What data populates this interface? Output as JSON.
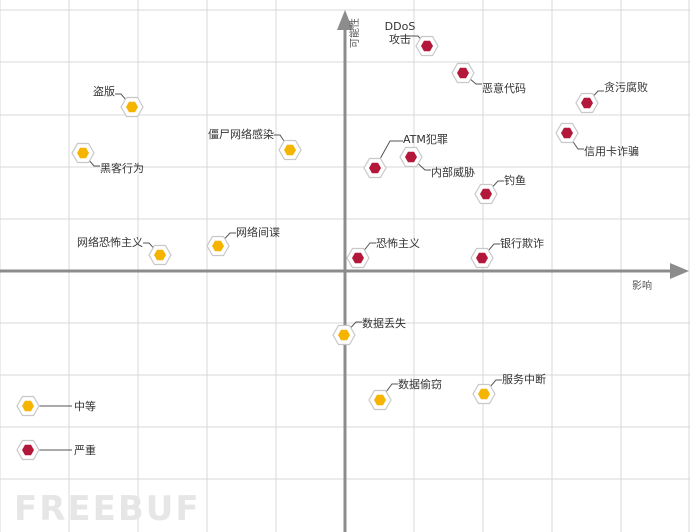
{
  "axes": {
    "x_label": "影响",
    "y_label": "可能性"
  },
  "colors": {
    "medium": "#f5b400",
    "severe": "#b3173a",
    "grid": "#d8d8d8",
    "axis": "#8c8c8c"
  },
  "legend": [
    {
      "label": "中等",
      "severity": "medium"
    },
    {
      "label": "严重",
      "severity": "severe"
    }
  ],
  "threats": [
    {
      "label": "DDoS\n攻击",
      "severity": "severe"
    },
    {
      "label": "恶意代码",
      "severity": "severe"
    },
    {
      "label": "贪污腐败",
      "severity": "severe"
    },
    {
      "label": "信用卡诈骗",
      "severity": "severe"
    },
    {
      "label": "ATM犯罪",
      "severity": "severe"
    },
    {
      "label": "内部威胁",
      "severity": "severe"
    },
    {
      "label": "钓鱼",
      "severity": "severe"
    },
    {
      "label": "恐怖主义",
      "severity": "severe"
    },
    {
      "label": "银行欺诈",
      "severity": "severe"
    },
    {
      "label": "盗版",
      "severity": "medium"
    },
    {
      "label": "黑客行为",
      "severity": "medium"
    },
    {
      "label": "僵尸网络感染",
      "severity": "medium"
    },
    {
      "label": "网络恐怖主义",
      "severity": "medium"
    },
    {
      "label": "网络间谍",
      "severity": "medium"
    },
    {
      "label": "数据丢失",
      "severity": "medium"
    },
    {
      "label": "数据偷窃",
      "severity": "medium"
    },
    {
      "label": "服务中断",
      "severity": "medium"
    }
  ],
  "watermark": "FREEBUF"
}
